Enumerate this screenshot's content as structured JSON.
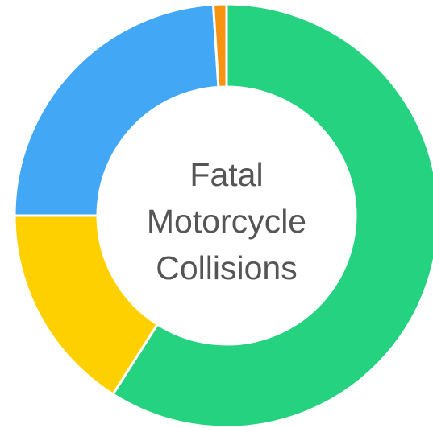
{
  "chart_data": {
    "type": "donut",
    "title": "Fatal Motorcycle Collisions",
    "values": [
      59,
      16,
      24,
      1
    ],
    "colors": [
      "#24d27f",
      "#fed000",
      "#42a7f5",
      "#f7930f"
    ]
  }
}
